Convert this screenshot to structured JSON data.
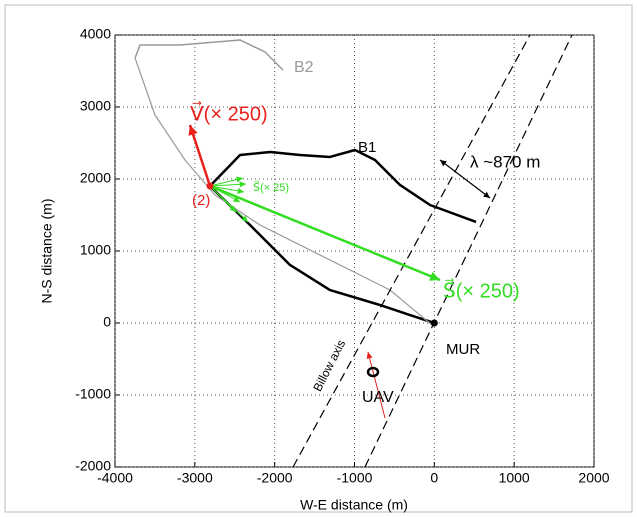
{
  "chart_data": {
    "type": "line",
    "xlabel": "W-E distance (m)",
    "ylabel": "N-S distance (m)",
    "xlim": [
      -4000,
      2000
    ],
    "ylim": [
      -2000,
      4000
    ],
    "xticks": [
      -4000,
      -3000,
      -2000,
      -1000,
      0,
      1000,
      2000
    ],
    "yticks": [
      -2000,
      -1000,
      0,
      1000,
      2000,
      3000,
      4000
    ],
    "grid": true,
    "series": [
      {
        "color": "#000000",
        "linestyle": "solid",
        "linewidth": 2.5,
        "x": [
          522,
          -54,
          -430,
          -743,
          -994,
          -1307,
          -1683,
          -2058,
          -2434,
          -2810,
          -2309,
          -1808,
          -1307,
          -681,
          -305,
          0
        ],
        "y": [
          1403,
          1639,
          1917,
          2264,
          2403,
          2306,
          2333,
          2375,
          2333,
          1903,
          1361,
          806,
          458,
          250,
          111,
          0
        ]
      },
      {
        "color": "#999999",
        "linestyle": "solid",
        "linewidth": 1.5,
        "x": [
          -3749,
          -3687,
          -3186,
          -2434,
          -2121,
          -1896
        ],
        "y": [
          3681,
          3861,
          3861,
          3931,
          3764,
          3514
        ]
      },
      {
        "color": "#999999",
        "linestyle": "solid",
        "linewidth": 1.2,
        "x": [
          -3749,
          -3499,
          -3123,
          -2747,
          -2184,
          -1307,
          -555,
          -29
        ],
        "y": [
          3681,
          2889,
          2264,
          1778,
          1361,
          875,
          458,
          -28
        ]
      },
      {
        "color": "#000000",
        "linestyle": "dashed",
        "linewidth": 1.2,
        "x": [
          -1770,
          1198
        ],
        "y": [
          -2000,
          4000
        ]
      },
      {
        "color": "#000000",
        "linestyle": "dashed",
        "linewidth": 1.2,
        "x": [
          -869,
          1724
        ],
        "y": [
          -2000,
          4000
        ]
      }
    ],
    "arrows": [
      {
        "color": "#e8211d",
        "x": [
          -2810,
          -3061
        ],
        "y": [
          1903,
          2750
        ],
        "width": 2.5,
        "double": false
      },
      {
        "color": "#33dd22",
        "x": [
          -2810,
          71
        ],
        "y": [
          1903,
          597
        ],
        "width": 2.5,
        "double": false
      },
      {
        "color": "#33dd22",
        "x": [
          -2810,
          -2397
        ],
        "y": [
          1903,
          2014
        ],
        "width": 1,
        "double": false
      },
      {
        "color": "#33dd22",
        "x": [
          -2810,
          -2359
        ],
        "y": [
          1903,
          1931
        ],
        "width": 1,
        "double": false
      },
      {
        "color": "#33dd22",
        "x": [
          -2810,
          -2384
        ],
        "y": [
          1903,
          1819
        ],
        "width": 1,
        "double": false
      },
      {
        "color": "#33dd22",
        "x": [
          -2810,
          -2434
        ],
        "y": [
          1903,
          1681
        ],
        "width": 1,
        "double": false
      },
      {
        "color": "#33dd22",
        "x": [
          -2810,
          -2484
        ],
        "y": [
          1903,
          1542
        ],
        "width": 1,
        "double": false
      },
      {
        "color": "#33dd22",
        "x": [
          -2810,
          -2334
        ],
        "y": [
          1903,
          1403
        ],
        "width": 1,
        "double": false
      },
      {
        "color": "#e8211d",
        "x": [
          -618,
          -831
        ],
        "y": [
          -1319,
          -403
        ],
        "width": 1,
        "double": false
      },
      {
        "color": "#000000",
        "x": [
          71,
          697
        ],
        "y": [
          2264,
          1736
        ],
        "width": 1.2,
        "double": true
      }
    ],
    "markers": [
      {
        "shape": "dot",
        "color": "#000000",
        "x": 0,
        "y": 0
      },
      {
        "shape": "ring",
        "color": "#000000",
        "x": -768,
        "y": -681
      },
      {
        "shape": "dot",
        "color": "#e8211d",
        "x": -2810,
        "y": 1903
      }
    ],
    "annotations": [
      {
        "text": "B2",
        "color": "#999999"
      },
      {
        "text": "B1",
        "color": "#000000"
      },
      {
        "text": "λ ~870 m",
        "color": "#000000"
      },
      {
        "text": "MUR",
        "color": "#000000"
      },
      {
        "text": "UAV",
        "color": "#000000"
      },
      {
        "text": "Billow axis",
        "color": "#000000"
      },
      {
        "text": "(2)",
        "color": "#e8211d"
      },
      {
        "text": "V⃗(× 250)",
        "color": "#e8211d"
      },
      {
        "text": "S⃗(× 25)",
        "color": "#33dd22"
      },
      {
        "text": "S⃗(× 250)",
        "color": "#33dd22"
      }
    ]
  }
}
